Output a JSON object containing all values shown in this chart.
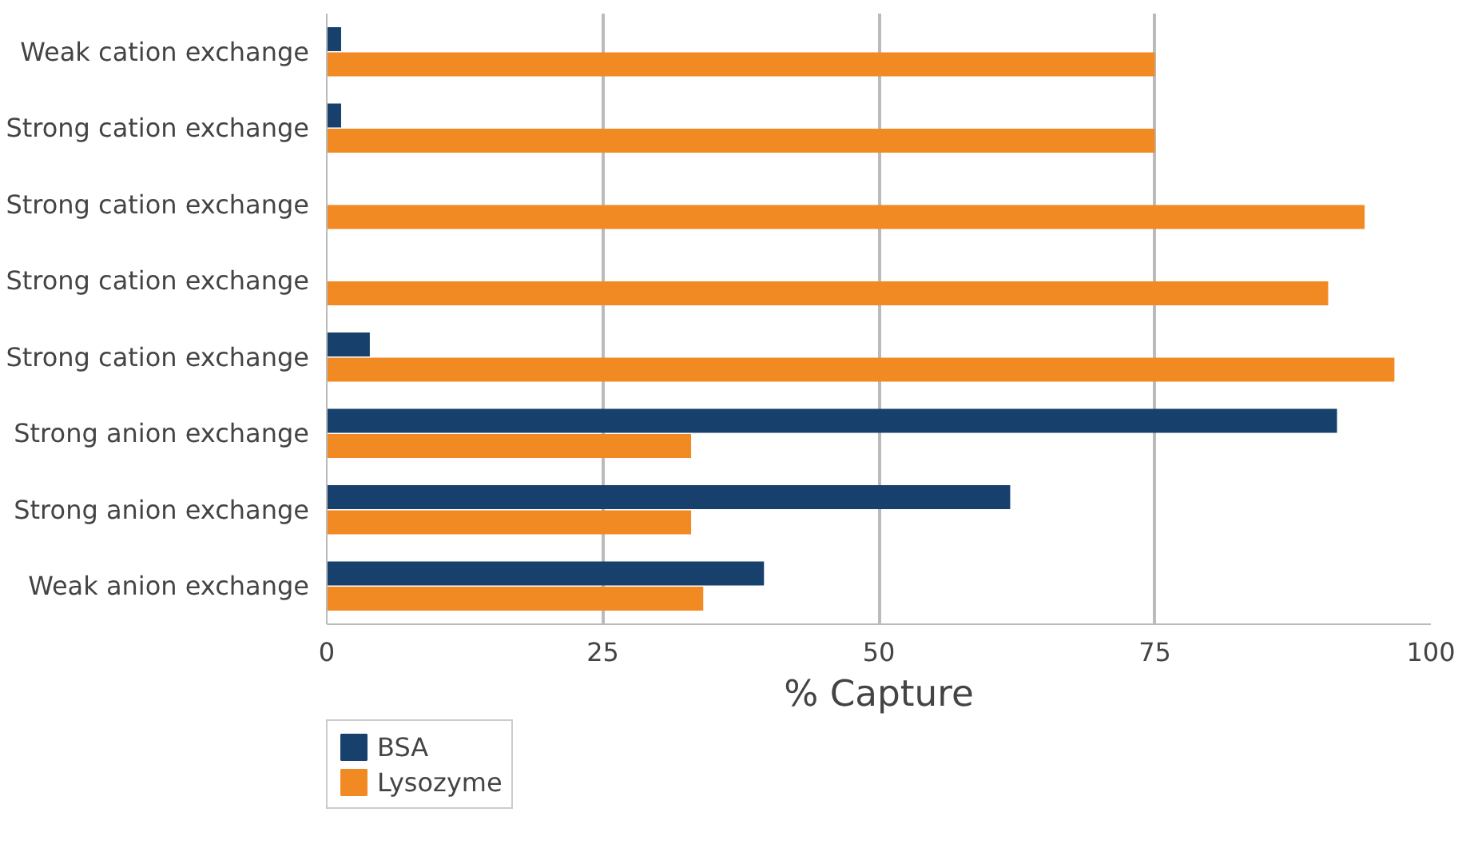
{
  "chart_data": {
    "type": "bar",
    "orientation": "horizontal",
    "xlabel": "% Capture",
    "categories": [
      "Weak cation exchange",
      "Strong cation exchange",
      "Strong cation exchange",
      "Strong cation exchange",
      "Strong cation exchange",
      "Strong anion exchange",
      "Strong anion exchange",
      "Weak anion exchange"
    ],
    "series": [
      {
        "name": "BSA",
        "color": "#17406d",
        "values": [
          1.3,
          1.3,
          0,
          0,
          3.9,
          91.5,
          61.9,
          39.6
        ]
      },
      {
        "name": "Lysozyme",
        "color": "#f28a24",
        "values": [
          75,
          75,
          94,
          90.7,
          96.7,
          33,
          33,
          34.1
        ]
      }
    ],
    "xlim": [
      0,
      100
    ],
    "xticks": [
      0,
      25,
      50,
      75,
      100
    ],
    "grid": "x",
    "legend": "bottom left"
  }
}
